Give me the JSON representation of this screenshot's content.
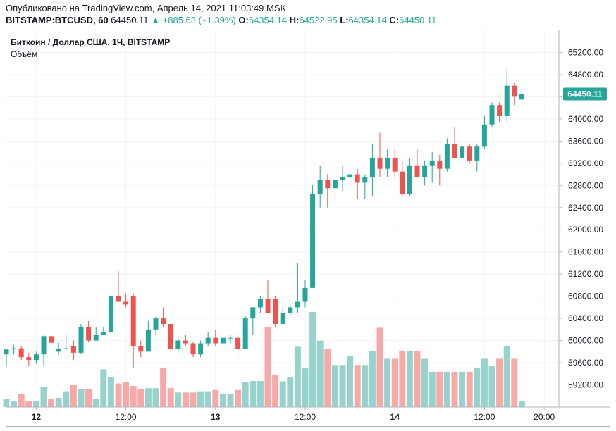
{
  "header": {
    "published": "Опубликовано на TradingView.com, Апрель 14, 2021 11:03:49 MSK",
    "symbol": "BITSTAMP:BTCUSD, 60",
    "last": "64450.11",
    "change": "▲ +885.63 (+1.39%)",
    "o_label": "O:",
    "o_value": "64354.14",
    "h_label": "H:",
    "h_value": "64522.95",
    "l_label": "L:",
    "l_value": "64354.14",
    "c_label": "C:",
    "c_value": "64450.11"
  },
  "legend": {
    "title": "Биткоин / Доллар США, 1Ч, BITSTAMP",
    "volume": "Объём"
  },
  "colors": {
    "up": "#26a69a",
    "down": "#ef5350",
    "vol_up": "#97d3cc",
    "vol_down": "#f7a9a7",
    "last_price_line": "#26a69a"
  },
  "chart_data": {
    "type": "candlestick",
    "symbol": "BITSTAMP:BTCUSD",
    "interval": "1H",
    "ylim": [
      58800,
      65600
    ],
    "y_ticks": [
      "65200.00",
      "64800.00",
      "64400.00",
      "64000.00",
      "63600.00",
      "63200.00",
      "62800.00",
      "62400.00",
      "62000.00",
      "61600.00",
      "61200.00",
      "60800.00",
      "60400.00",
      "60000.00",
      "59600.00",
      "59200.00"
    ],
    "y_tick_values": [
      65200,
      64800,
      64400,
      64000,
      63600,
      63200,
      62800,
      62400,
      62000,
      61600,
      61200,
      60800,
      60400,
      60000,
      59600,
      59200
    ],
    "x_ticks": [
      {
        "label": "12",
        "index": 4,
        "bold": true
      },
      {
        "label": "12:00",
        "index": 16,
        "bold": false
      },
      {
        "label": "13",
        "index": 28,
        "bold": true
      },
      {
        "label": "12:00",
        "index": 40,
        "bold": false
      },
      {
        "label": "14",
        "index": 52,
        "bold": true
      },
      {
        "label": "12:00",
        "index": 64,
        "bold": false
      },
      {
        "label": "20:00",
        "index": 72,
        "bold": false
      }
    ],
    "last_price": 64450.11,
    "last_price_label": "64450.11",
    "candles": [
      {
        "o": 59750,
        "h": 59850,
        "l": 59550,
        "c": 59840,
        "v": 0.25
      },
      {
        "o": 59850,
        "h": 59920,
        "l": 59750,
        "c": 59860,
        "v": 0.18
      },
      {
        "o": 59860,
        "h": 59900,
        "l": 59650,
        "c": 59700,
        "v": 0.42
      },
      {
        "o": 59700,
        "h": 59780,
        "l": 59550,
        "c": 59650,
        "v": 0.18
      },
      {
        "o": 59650,
        "h": 59800,
        "l": 59580,
        "c": 59750,
        "v": 0.18
      },
      {
        "o": 59750,
        "h": 60100,
        "l": 59550,
        "c": 60080,
        "v": 0.66
      },
      {
        "o": 60080,
        "h": 60100,
        "l": 59950,
        "c": 59960,
        "v": 0.25
      },
      {
        "o": 59800,
        "h": 59960,
        "l": 59750,
        "c": 59850,
        "v": 0.3
      },
      {
        "o": 59850,
        "h": 60100,
        "l": 59820,
        "c": 59860,
        "v": 0.51
      },
      {
        "o": 59900,
        "h": 60000,
        "l": 59650,
        "c": 59780,
        "v": 0.72
      },
      {
        "o": 59780,
        "h": 60300,
        "l": 59750,
        "c": 60250,
        "v": 0.57
      },
      {
        "o": 60250,
        "h": 60350,
        "l": 59980,
        "c": 60000,
        "v": 0.57
      },
      {
        "o": 60000,
        "h": 60250,
        "l": 60000,
        "c": 60100,
        "v": 0.25
      },
      {
        "o": 60100,
        "h": 60250,
        "l": 60100,
        "c": 60150,
        "v": 1.22
      },
      {
        "o": 60150,
        "h": 60850,
        "l": 60100,
        "c": 60800,
        "v": 0.97
      },
      {
        "o": 60800,
        "h": 61250,
        "l": 60700,
        "c": 60700,
        "v": 0.76
      },
      {
        "o": 60700,
        "h": 60850,
        "l": 60600,
        "c": 60650,
        "v": 0.8
      },
      {
        "o": 60800,
        "h": 60850,
        "l": 59500,
        "c": 59900,
        "v": 0.68
      },
      {
        "o": 59900,
        "h": 60000,
        "l": 59700,
        "c": 59800,
        "v": 0.57
      },
      {
        "o": 59800,
        "h": 60350,
        "l": 59800,
        "c": 60200,
        "v": 0.61
      },
      {
        "o": 60200,
        "h": 60450,
        "l": 60100,
        "c": 60400,
        "v": 0.61
      },
      {
        "o": 60400,
        "h": 60600,
        "l": 60250,
        "c": 60300,
        "v": 1.25
      },
      {
        "o": 60300,
        "h": 60300,
        "l": 59800,
        "c": 59850,
        "v": 0.61
      },
      {
        "o": 59850,
        "h": 60050,
        "l": 59780,
        "c": 60000,
        "v": 0.47
      },
      {
        "o": 60000,
        "h": 60100,
        "l": 59900,
        "c": 59950,
        "v": 0.47
      },
      {
        "o": 59950,
        "h": 59980,
        "l": 59700,
        "c": 59750,
        "v": 0.47
      },
      {
        "o": 59750,
        "h": 60000,
        "l": 59700,
        "c": 59950,
        "v": 0.51
      },
      {
        "o": 59950,
        "h": 60150,
        "l": 59900,
        "c": 60050,
        "v": 0.51
      },
      {
        "o": 60050,
        "h": 60200,
        "l": 59900,
        "c": 59950,
        "v": 0.55
      },
      {
        "o": 59950,
        "h": 60100,
        "l": 59900,
        "c": 60050,
        "v": 0.43
      },
      {
        "o": 60050,
        "h": 60100,
        "l": 59950,
        "c": 60050,
        "v": 0.43
      },
      {
        "o": 60050,
        "h": 60150,
        "l": 59750,
        "c": 59850,
        "v": 0.55
      },
      {
        "o": 59850,
        "h": 60450,
        "l": 59850,
        "c": 60400,
        "v": 0.8
      },
      {
        "o": 60400,
        "h": 60550,
        "l": 60100,
        "c": 60600,
        "v": 0.84
      },
      {
        "o": 60600,
        "h": 60800,
        "l": 60500,
        "c": 60750,
        "v": 0.84
      },
      {
        "o": 60750,
        "h": 61100,
        "l": 60500,
        "c": 60500,
        "v": 2.57
      },
      {
        "o": 60750,
        "h": 60800,
        "l": 60250,
        "c": 60300,
        "v": 1.04
      },
      {
        "o": 60300,
        "h": 60600,
        "l": 60300,
        "c": 60500,
        "v": 0.83
      },
      {
        "o": 60500,
        "h": 60650,
        "l": 60450,
        "c": 60600,
        "v": 0.97
      },
      {
        "o": 60600,
        "h": 61400,
        "l": 60500,
        "c": 60700,
        "v": 1.95
      },
      {
        "o": 60700,
        "h": 61100,
        "l": 60600,
        "c": 60950,
        "v": 1.25
      },
      {
        "o": 60950,
        "h": 62800,
        "l": 60950,
        "c": 62650,
        "v": 3.07
      },
      {
        "o": 62650,
        "h": 63150,
        "l": 62400,
        "c": 62900,
        "v": 2.14
      },
      {
        "o": 62900,
        "h": 63000,
        "l": 62400,
        "c": 62750,
        "v": 1.88
      },
      {
        "o": 62750,
        "h": 63000,
        "l": 62500,
        "c": 62900,
        "v": 1.36
      },
      {
        "o": 62900,
        "h": 63150,
        "l": 62700,
        "c": 62950,
        "v": 1.36
      },
      {
        "o": 62950,
        "h": 63150,
        "l": 62900,
        "c": 63000,
        "v": 1.66
      },
      {
        "o": 63000,
        "h": 63100,
        "l": 62550,
        "c": 62850,
        "v": 1.36
      },
      {
        "o": 62850,
        "h": 63000,
        "l": 62550,
        "c": 62950,
        "v": 1.36
      },
      {
        "o": 62950,
        "h": 63550,
        "l": 62600,
        "c": 63300,
        "v": 1.82
      },
      {
        "o": 63300,
        "h": 63750,
        "l": 62950,
        "c": 63100,
        "v": 2.56
      },
      {
        "o": 63100,
        "h": 63450,
        "l": 62950,
        "c": 63300,
        "v": 1.56
      },
      {
        "o": 63300,
        "h": 63450,
        "l": 62950,
        "c": 63050,
        "v": 1.56
      },
      {
        "o": 63050,
        "h": 63250,
        "l": 62600,
        "c": 62650,
        "v": 1.82
      },
      {
        "o": 62650,
        "h": 63300,
        "l": 62600,
        "c": 63150,
        "v": 1.82
      },
      {
        "o": 63150,
        "h": 63450,
        "l": 63000,
        "c": 62950,
        "v": 1.82
      },
      {
        "o": 62950,
        "h": 63250,
        "l": 62800,
        "c": 63150,
        "v": 1.56
      },
      {
        "o": 63150,
        "h": 63400,
        "l": 62850,
        "c": 63250,
        "v": 1.14
      },
      {
        "o": 63250,
        "h": 63350,
        "l": 62800,
        "c": 63100,
        "v": 1.14
      },
      {
        "o": 63100,
        "h": 63650,
        "l": 63050,
        "c": 63550,
        "v": 1.14
      },
      {
        "o": 63550,
        "h": 63850,
        "l": 63300,
        "c": 63300,
        "v": 1.14
      },
      {
        "o": 63300,
        "h": 63500,
        "l": 63200,
        "c": 63500,
        "v": 1.14
      },
      {
        "o": 63500,
        "h": 63550,
        "l": 63200,
        "c": 63250,
        "v": 1.14
      },
      {
        "o": 63250,
        "h": 63550,
        "l": 63050,
        "c": 63500,
        "v": 1.25
      },
      {
        "o": 63500,
        "h": 64050,
        "l": 63450,
        "c": 63900,
        "v": 1.56
      },
      {
        "o": 63900,
        "h": 64300,
        "l": 63850,
        "c": 64250,
        "v": 1.33
      },
      {
        "o": 64250,
        "h": 64300,
        "l": 63950,
        "c": 64050,
        "v": 1.56
      },
      {
        "o": 64050,
        "h": 64900,
        "l": 63950,
        "c": 64600,
        "v": 1.96
      },
      {
        "o": 64600,
        "h": 64650,
        "l": 64250,
        "c": 64400,
        "v": 1.56
      },
      {
        "o": 64350,
        "h": 64520,
        "l": 64350,
        "c": 64450,
        "v": 0.18
      }
    ]
  }
}
